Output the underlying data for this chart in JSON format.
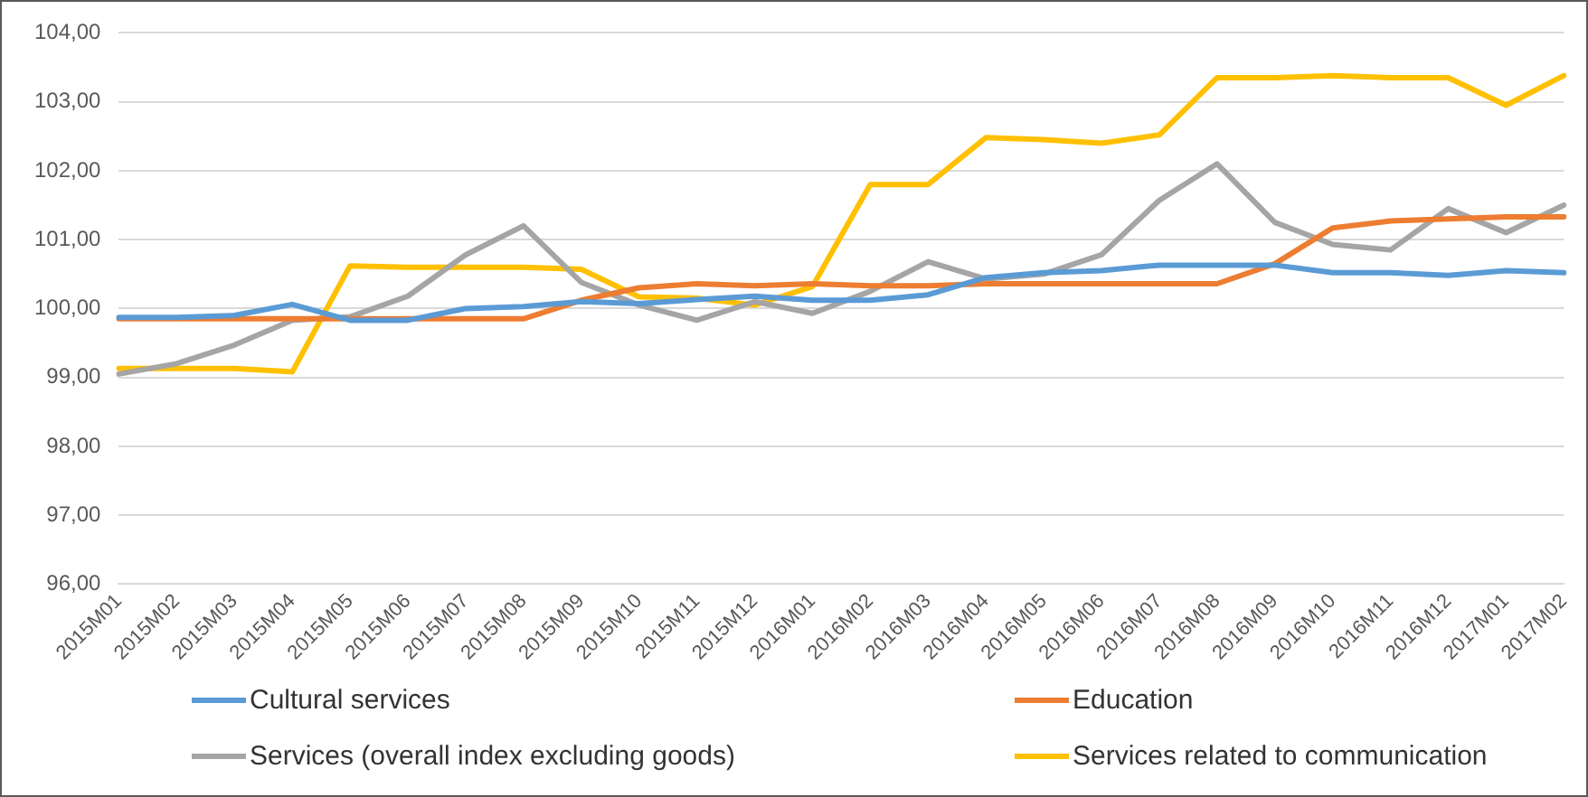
{
  "chart_data": {
    "type": "line",
    "categories": [
      "2015M01",
      "2015M02",
      "2015M03",
      "2015M04",
      "2015M05",
      "2015M06",
      "2015M07",
      "2015M08",
      "2015M09",
      "2015M10",
      "2015M11",
      "2015M12",
      "2016M01",
      "2016M02",
      "2016M03",
      "2016M04",
      "2016M05",
      "2016M06",
      "2016M07",
      "2016M08",
      "2016M09",
      "2016M10",
      "2016M11",
      "2016M12",
      "2017M01",
      "2017M02"
    ],
    "series": [
      {
        "name": "Cultural services",
        "color": "#5b9bd5",
        "values": [
          99.87,
          99.87,
          99.9,
          100.06,
          99.83,
          99.83,
          100.0,
          100.03,
          100.1,
          100.07,
          100.13,
          100.18,
          100.12,
          100.12,
          100.2,
          100.45,
          100.52,
          100.55,
          100.63,
          100.63,
          100.63,
          100.52,
          100.52,
          100.48,
          100.55,
          100.52
        ]
      },
      {
        "name": "Education",
        "color": "#ed7d31",
        "values": [
          99.85,
          99.85,
          99.85,
          99.85,
          99.85,
          99.85,
          99.85,
          99.85,
          100.12,
          100.3,
          100.36,
          100.33,
          100.36,
          100.33,
          100.33,
          100.36,
          100.36,
          100.36,
          100.36,
          100.36,
          100.65,
          101.17,
          101.27,
          101.3,
          101.33,
          101.33
        ]
      },
      {
        "name": "Services (overall index excluding goods)",
        "color": "#a5a5a5",
        "values": [
          99.05,
          99.2,
          99.47,
          99.83,
          99.88,
          100.18,
          100.78,
          101.2,
          100.38,
          100.05,
          99.83,
          100.1,
          99.93,
          100.25,
          100.68,
          100.43,
          100.5,
          100.78,
          101.57,
          102.1,
          101.25,
          100.93,
          100.85,
          101.45,
          101.1,
          101.5
        ]
      },
      {
        "name": "Services related to communication",
        "color": "#ffc000",
        "values": [
          99.13,
          99.13,
          99.13,
          99.08,
          100.62,
          100.6,
          100.6,
          100.6,
          100.57,
          100.17,
          100.15,
          100.05,
          100.32,
          101.8,
          101.8,
          102.48,
          102.45,
          102.4,
          102.52,
          103.35,
          103.35,
          103.38,
          103.35,
          103.35,
          102.95,
          103.38
        ]
      }
    ],
    "ylim": [
      96,
      104
    ],
    "yticks": [
      {
        "value": 96,
        "label": "96,00"
      },
      {
        "value": 97,
        "label": "97,00"
      },
      {
        "value": 98,
        "label": "98,00"
      },
      {
        "value": 99,
        "label": "99,00"
      },
      {
        "value": 100,
        "label": "100,00"
      },
      {
        "value": 101,
        "label": "101,00"
      },
      {
        "value": 102,
        "label": "102,00"
      },
      {
        "value": 103,
        "label": "103,00"
      },
      {
        "value": 104,
        "label": "104,00"
      }
    ],
    "grid": "y",
    "legend": "bottom",
    "marker": "none",
    "line_style": "solid"
  }
}
